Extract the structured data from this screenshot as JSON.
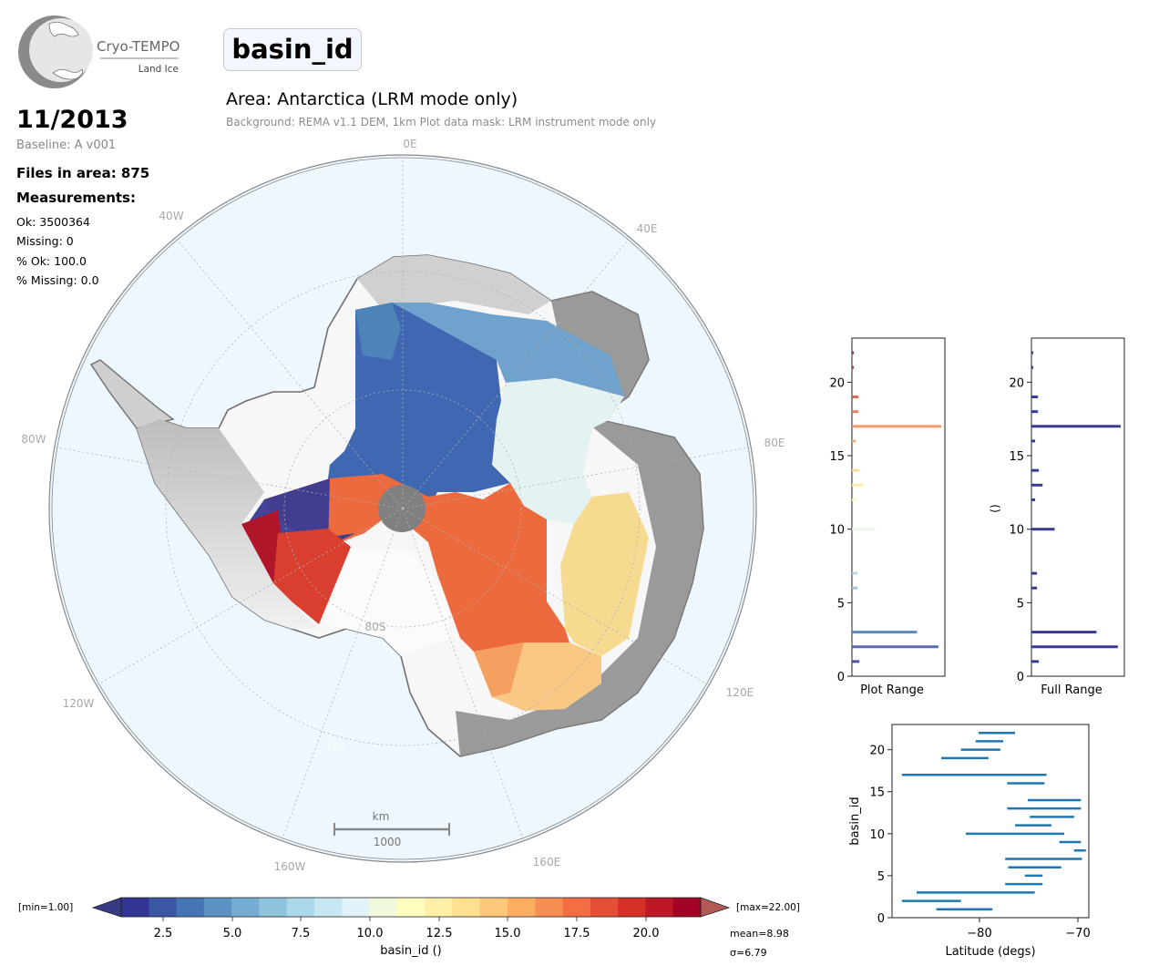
{
  "logo": {
    "name": "Cryo-TEMPO",
    "subtitle": "Land Ice"
  },
  "header": {
    "variable": "basin_id",
    "date": "11/2013",
    "baseline": "Baseline: A v001",
    "files_in_area": "Files in area: 875",
    "measurements_label": "Measurements:",
    "stats": [
      "Ok: 3500364",
      "Missing: 0",
      "% Ok: 100.0",
      "% Missing: 0.0"
    ]
  },
  "area": {
    "title": "Area: Antarctica (LRM mode only)",
    "subtitle": "Background: REMA v1.1 DEM, 1km   Plot data mask: LRM instrument mode only"
  },
  "map": {
    "longitude_labels": [
      "0E",
      "40E",
      "80E",
      "120E",
      "160E",
      "160W",
      "120W",
      "80W",
      "40W"
    ],
    "latitude_labels": [
      "80S",
      "70S"
    ],
    "scalebar": {
      "unit": "km",
      "length_label": "1000"
    },
    "colors": {
      "ocean": "#eef7fe",
      "ice_shelf": "#f7f7f7",
      "pole_hole": "#808080"
    }
  },
  "colorbar": {
    "min_label": "[min=1.00]",
    "max_label": "[max=22.00]",
    "tick_labels": [
      "2.5",
      "5.0",
      "7.5",
      "10.0",
      "12.5",
      "15.0",
      "17.5",
      "20.0"
    ],
    "label": "basin_id ()",
    "mean": "mean=8.98",
    "sigma": "σ=6.79",
    "colors": [
      "#313695",
      "#4575b4",
      "#74add1",
      "#abd9e9",
      "#e0f3f8",
      "#ffffbf",
      "#fee090",
      "#fdae61",
      "#f46d43",
      "#d73027",
      "#a50026"
    ]
  },
  "chart_data": [
    {
      "type": "bar",
      "orientation": "horizontal",
      "xlabel": "Plot Range",
      "ylabel": "",
      "ylim": [
        0,
        23
      ],
      "ytick_labels": [
        "0",
        "5",
        "10",
        "15",
        "20"
      ],
      "categories": [
        1,
        2,
        3,
        6,
        7,
        10,
        12,
        13,
        14,
        16,
        17,
        18,
        19,
        21,
        22
      ],
      "values": [
        0.08,
        0.93,
        0.7,
        0.06,
        0.06,
        0.25,
        0.04,
        0.12,
        0.08,
        0.04,
        0.96,
        0.07,
        0.07,
        0.02,
        0.02
      ]
    },
    {
      "type": "bar",
      "orientation": "horizontal",
      "xlabel": "Full Range",
      "ylabel": "()",
      "ylim": [
        0,
        23
      ],
      "ytick_labels": [
        "0",
        "5",
        "10",
        "15",
        "20"
      ],
      "categories": [
        1,
        2,
        3,
        6,
        7,
        10,
        12,
        13,
        14,
        16,
        17,
        18,
        19,
        21,
        22
      ],
      "values": [
        0.08,
        0.93,
        0.7,
        0.06,
        0.06,
        0.25,
        0.04,
        0.12,
        0.08,
        0.04,
        0.96,
        0.07,
        0.07,
        0.02,
        0.02
      ]
    },
    {
      "type": "range",
      "xlabel": "Latitude (degs)",
      "ylabel": "basin_id",
      "xlim": [
        -89,
        -69
      ],
      "ylim": [
        0,
        23
      ],
      "xtick_labels": [
        "−80",
        "−70"
      ],
      "ytick_labels": [
        "0",
        "5",
        "10",
        "15",
        "20"
      ],
      "segments": [
        {
          "id": 1,
          "lat_min": -84.5,
          "lat_max": -78.8
        },
        {
          "id": 2,
          "lat_min": -88.0,
          "lat_max": -82.0
        },
        {
          "id": 3,
          "lat_min": -86.5,
          "lat_max": -74.5
        },
        {
          "id": 4,
          "lat_min": -77.5,
          "lat_max": -73.7
        },
        {
          "id": 5,
          "lat_min": -75.5,
          "lat_max": -73.7
        },
        {
          "id": 6,
          "lat_min": -77.2,
          "lat_max": -71.8
        },
        {
          "id": 7,
          "lat_min": -77.5,
          "lat_max": -69.7
        },
        {
          "id": 8,
          "lat_min": -70.5,
          "lat_max": -69.3
        },
        {
          "id": 9,
          "lat_min": -72.0,
          "lat_max": -69.8
        },
        {
          "id": 10,
          "lat_min": -81.5,
          "lat_max": -71.5
        },
        {
          "id": 11,
          "lat_min": -76.5,
          "lat_max": -72.8
        },
        {
          "id": 12,
          "lat_min": -75.0,
          "lat_max": -70.5
        },
        {
          "id": 13,
          "lat_min": -77.3,
          "lat_max": -69.8
        },
        {
          "id": 14,
          "lat_min": -75.2,
          "lat_max": -69.8
        },
        {
          "id": 16,
          "lat_min": -77.3,
          "lat_max": -73.5
        },
        {
          "id": 17,
          "lat_min": -88.0,
          "lat_max": -73.3
        },
        {
          "id": 19,
          "lat_min": -84.0,
          "lat_max": -79.2
        },
        {
          "id": 20,
          "lat_min": -82.0,
          "lat_max": -78.0
        },
        {
          "id": 21,
          "lat_min": -80.5,
          "lat_max": -77.7
        },
        {
          "id": 22,
          "lat_min": -80.2,
          "lat_max": -76.5
        }
      ]
    }
  ]
}
